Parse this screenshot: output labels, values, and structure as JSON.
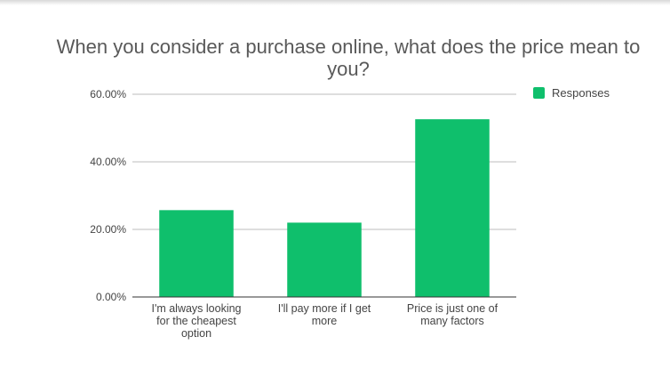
{
  "chart_data": {
    "type": "bar",
    "title": "When you consider a purchase online, what does the price mean to you?",
    "xlabel": "",
    "ylabel": "",
    "ylim": [
      0,
      60
    ],
    "yticks": [
      "0.00%",
      "20.00%",
      "40.00%",
      "60.00%"
    ],
    "categories": [
      [
        "I'm always looking",
        "for the cheapest",
        "option"
      ],
      [
        "I'll pay more if I get",
        "more"
      ],
      [
        "Price is just one of",
        "many factors"
      ]
    ],
    "series": [
      {
        "name": "Responses",
        "values": [
          25.7,
          22.0,
          52.6
        ],
        "color": "#0fbf6c"
      }
    ],
    "grid": true,
    "legend_position": "right"
  }
}
